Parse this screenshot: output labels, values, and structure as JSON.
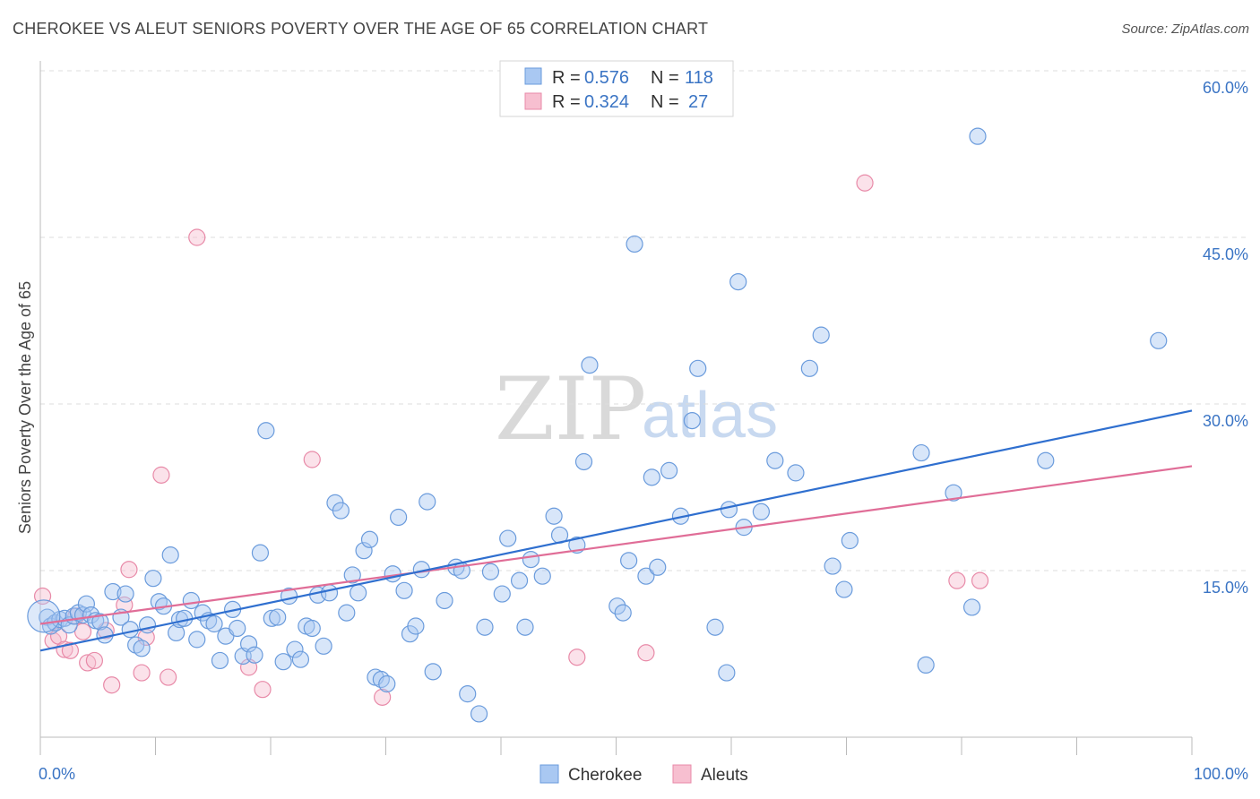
{
  "title": "CHEROKEE VS ALEUT SENIORS POVERTY OVER THE AGE OF 65 CORRELATION CHART",
  "source": "Source: ZipAtlas.com",
  "watermark": {
    "zip": "ZIP",
    "atlas": "atlas"
  },
  "colors": {
    "cherokee_fill": "#a9c8f2",
    "cherokee_stroke": "#6a9bdc",
    "cherokee_line": "#2f6fcf",
    "aleut_fill": "#f7bfd0",
    "aleut_stroke": "#e88aa8",
    "aleut_line": "#e06d97",
    "value_text": "#3a74c4",
    "grid": "#dddddd"
  },
  "legend": {
    "r_label": "R =",
    "n_label": "N =",
    "cherokee": {
      "r": "0.576",
      "n": "118"
    },
    "aleut": {
      "r": "0.324",
      "n": "27"
    }
  },
  "chart_data": {
    "type": "scatter",
    "title": "CHEROKEE VS ALEUT SENIORS POVERTY OVER THE AGE OF 65 CORRELATION CHART",
    "xlabel": "",
    "ylabel": "Seniors Poverty Over the Age of 65",
    "xlim": [
      0,
      100
    ],
    "ylim": [
      0,
      60
    ],
    "x_tick_labels": [
      "0.0%",
      "100.0%"
    ],
    "y_tick_labels": [
      "15.0%",
      "30.0%",
      "45.0%",
      "60.0%"
    ],
    "y_ticks": [
      15,
      30,
      45,
      60
    ],
    "grid": true,
    "legend_position": "bottom-center",
    "series": [
      {
        "name": "Cherokee",
        "trend": {
          "x": [
            0,
            100
          ],
          "y": [
            7.8,
            29.4
          ]
        },
        "points": [
          [
            0.6,
            10.8
          ],
          [
            0.9,
            10.0
          ],
          [
            1.3,
            10.3
          ],
          [
            1.7,
            10.6
          ],
          [
            2.1,
            10.7
          ],
          [
            2.5,
            10.1
          ],
          [
            2.9,
            10.9
          ],
          [
            3.3,
            11.2
          ],
          [
            3.7,
            11.0
          ],
          [
            4.0,
            12.0
          ],
          [
            4.4,
            11.0
          ],
          [
            4.8,
            10.5
          ],
          [
            5.2,
            10.4
          ],
          [
            5.6,
            9.2
          ],
          [
            6.3,
            13.1
          ],
          [
            7.0,
            10.8
          ],
          [
            7.4,
            12.9
          ],
          [
            7.8,
            9.7
          ],
          [
            8.3,
            8.3
          ],
          [
            8.8,
            8.0
          ],
          [
            9.3,
            10.1
          ],
          [
            9.8,
            14.3
          ],
          [
            10.3,
            12.2
          ],
          [
            10.7,
            11.8
          ],
          [
            11.3,
            16.4
          ],
          [
            11.8,
            9.4
          ],
          [
            12.1,
            10.6
          ],
          [
            12.5,
            10.7
          ],
          [
            13.1,
            12.3
          ],
          [
            13.6,
            8.8
          ],
          [
            14.1,
            11.2
          ],
          [
            14.6,
            10.5
          ],
          [
            15.1,
            10.2
          ],
          [
            15.6,
            6.9
          ],
          [
            16.1,
            9.1
          ],
          [
            16.7,
            11.5
          ],
          [
            17.1,
            9.8
          ],
          [
            17.6,
            7.3
          ],
          [
            18.1,
            8.4
          ],
          [
            18.6,
            7.4
          ],
          [
            19.1,
            16.6
          ],
          [
            19.6,
            27.6
          ],
          [
            20.1,
            10.7
          ],
          [
            20.6,
            10.8
          ],
          [
            21.1,
            6.8
          ],
          [
            21.6,
            12.7
          ],
          [
            22.1,
            7.9
          ],
          [
            22.6,
            7.0
          ],
          [
            23.1,
            10.0
          ],
          [
            23.6,
            9.8
          ],
          [
            24.1,
            12.8
          ],
          [
            24.6,
            8.2
          ],
          [
            25.1,
            13.0
          ],
          [
            25.6,
            21.1
          ],
          [
            26.1,
            20.4
          ],
          [
            26.6,
            11.2
          ],
          [
            27.1,
            14.6
          ],
          [
            27.6,
            13.0
          ],
          [
            28.1,
            16.8
          ],
          [
            28.6,
            17.8
          ],
          [
            29.1,
            5.4
          ],
          [
            29.6,
            5.2
          ],
          [
            30.1,
            4.8
          ],
          [
            30.6,
            14.7
          ],
          [
            31.1,
            19.8
          ],
          [
            31.6,
            13.2
          ],
          [
            32.1,
            9.3
          ],
          [
            32.6,
            10.0
          ],
          [
            33.1,
            15.1
          ],
          [
            33.6,
            21.2
          ],
          [
            34.1,
            5.9
          ],
          [
            35.1,
            12.3
          ],
          [
            36.1,
            15.3
          ],
          [
            36.6,
            15.0
          ],
          [
            37.1,
            3.9
          ],
          [
            38.1,
            2.1
          ],
          [
            38.6,
            9.9
          ],
          [
            39.1,
            14.9
          ],
          [
            40.1,
            12.9
          ],
          [
            40.6,
            17.9
          ],
          [
            41.6,
            14.1
          ],
          [
            42.1,
            9.9
          ],
          [
            42.6,
            16.0
          ],
          [
            43.6,
            14.5
          ],
          [
            44.6,
            19.9
          ],
          [
            45.1,
            18.2
          ],
          [
            46.6,
            17.3
          ],
          [
            47.2,
            24.8
          ],
          [
            47.7,
            33.5
          ],
          [
            50.1,
            11.8
          ],
          [
            50.6,
            11.2
          ],
          [
            51.1,
            15.9
          ],
          [
            51.6,
            44.4
          ],
          [
            52.6,
            14.5
          ],
          [
            53.1,
            23.4
          ],
          [
            53.6,
            15.3
          ],
          [
            54.6,
            24.0
          ],
          [
            55.6,
            19.9
          ],
          [
            56.6,
            28.5
          ],
          [
            57.1,
            33.2
          ],
          [
            58.6,
            9.9
          ],
          [
            59.6,
            5.8
          ],
          [
            59.8,
            20.5
          ],
          [
            60.6,
            41.0
          ],
          [
            61.1,
            18.9
          ],
          [
            62.6,
            20.3
          ],
          [
            63.8,
            24.9
          ],
          [
            65.6,
            23.8
          ],
          [
            66.8,
            33.2
          ],
          [
            67.8,
            36.2
          ],
          [
            68.8,
            15.4
          ],
          [
            69.8,
            13.3
          ],
          [
            70.3,
            17.7
          ],
          [
            76.5,
            25.6
          ],
          [
            76.9,
            6.5
          ],
          [
            79.3,
            22.0
          ],
          [
            80.9,
            11.7
          ],
          [
            81.4,
            54.1
          ],
          [
            87.3,
            24.9
          ],
          [
            97.1,
            35.7
          ]
        ]
      },
      {
        "name": "Aleuts",
        "trend": {
          "x": [
            0,
            100
          ],
          "y": [
            10.2,
            24.4
          ]
        },
        "points": [
          [
            0.2,
            12.7
          ],
          [
            1.1,
            8.7
          ],
          [
            1.6,
            9.1
          ],
          [
            2.1,
            7.9
          ],
          [
            2.6,
            7.8
          ],
          [
            3.1,
            10.9
          ],
          [
            3.7,
            9.5
          ],
          [
            4.1,
            6.7
          ],
          [
            4.7,
            6.9
          ],
          [
            5.7,
            9.6
          ],
          [
            6.2,
            4.7
          ],
          [
            7.3,
            11.9
          ],
          [
            7.7,
            15.1
          ],
          [
            8.8,
            5.8
          ],
          [
            9.2,
            9.0
          ],
          [
            10.5,
            23.6
          ],
          [
            11.1,
            5.4
          ],
          [
            13.6,
            45.0
          ],
          [
            18.1,
            6.3
          ],
          [
            19.3,
            4.3
          ],
          [
            23.6,
            25.0
          ],
          [
            29.7,
            3.6
          ],
          [
            46.6,
            7.2
          ],
          [
            52.6,
            7.6
          ],
          [
            71.6,
            49.9
          ],
          [
            79.6,
            14.1
          ],
          [
            81.6,
            14.1
          ]
        ]
      }
    ]
  }
}
